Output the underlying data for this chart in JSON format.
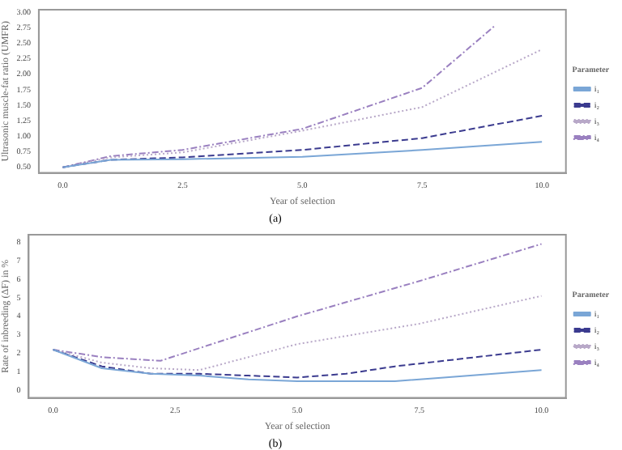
{
  "chart_data": [
    {
      "type": "line",
      "xlabel": "Year of selection",
      "ylabel": "Ultrasonic muscle-fat ratio (UMFR)",
      "legend_title": "Parameter",
      "legend": "right",
      "grid": false,
      "marker": "none",
      "annotations": [
        "(a)"
      ],
      "xlim": [
        -0.5,
        10.5
      ],
      "xticks": [
        {
          "value": 0,
          "label": "0.0"
        },
        {
          "value": 2.5,
          "label": "2.5"
        },
        {
          "value": 5,
          "label": "5.0"
        },
        {
          "value": 7.5,
          "label": "7.5"
        },
        {
          "value": 10,
          "label": "10.0"
        }
      ],
      "ylim": [
        0.41,
        3.04
      ],
      "yticks": [
        {
          "value": 0.5,
          "label": "0.50"
        },
        0.75,
        {
          "value": 1,
          "label": "1.00"
        },
        1.25,
        {
          "value": 1.5,
          "label": "1.50"
        },
        1.75,
        {
          "value": 2,
          "label": "2.00"
        },
        2.25,
        {
          "value": 2.5,
          "label": "2.50"
        },
        2.75,
        {
          "value": 3,
          "label": "3.00"
        }
      ],
      "series": [
        {
          "name": "i₁",
          "color": "#7aa6d6",
          "line_style": "solid",
          "x": [
            0,
            1,
            2.5,
            5,
            7.5,
            10
          ],
          "values": [
            0.5,
            0.62,
            0.63,
            0.67,
            0.78,
            0.91
          ]
        },
        {
          "name": "i₂",
          "color": "#3b3b8f",
          "line_style": "dashed",
          "x": [
            0,
            1,
            2.5,
            5,
            7.5,
            10
          ],
          "values": [
            0.5,
            0.62,
            0.66,
            0.78,
            0.97,
            1.33
          ]
        },
        {
          "name": "i₃",
          "color": "#b8a8c8",
          "line_style": "dotted",
          "x": [
            0,
            1,
            2.5,
            5,
            7.5,
            10
          ],
          "values": [
            0.5,
            0.66,
            0.74,
            1.09,
            1.47,
            2.4
          ]
        },
        {
          "name": "i₄",
          "color": "#9a80c0",
          "line_style": "dashdot",
          "x": [
            0,
            1,
            2.5,
            5,
            7.5,
            9
          ],
          "values": [
            0.5,
            0.68,
            0.78,
            1.12,
            1.78,
            2.77
          ]
        }
      ]
    },
    {
      "type": "line",
      "xlabel": "Year of selection",
      "ylabel": "Rate of inbreeding (ΔF) in %",
      "legend_title": "Parameter",
      "legend": "right",
      "grid": false,
      "marker": "none",
      "annotations": [
        "(b)"
      ],
      "xlim": [
        -0.5,
        10.5
      ],
      "xticks": [
        {
          "value": 0,
          "label": "0.0"
        },
        {
          "value": 2.5,
          "label": "2.5"
        },
        {
          "value": 5,
          "label": "5.0"
        },
        {
          "value": 7.5,
          "label": "7.5"
        },
        {
          "value": 10,
          "label": "10.0"
        }
      ],
      "ylim": [
        -0.4,
        8.4
      ],
      "yticks": [
        0,
        1,
        2,
        3,
        4,
        5,
        6,
        7,
        8
      ],
      "series": [
        {
          "name": "i₁",
          "color": "#7aa6d6",
          "line_style": "solid",
          "x": [
            0,
            1,
            2,
            3,
            4,
            5,
            6,
            7,
            8,
            10
          ],
          "values": [
            2.2,
            1.2,
            0.9,
            0.8,
            0.6,
            0.5,
            0.5,
            0.5,
            0.7,
            1.1
          ]
        },
        {
          "name": "i₂",
          "color": "#3b3b8f",
          "line_style": "dashed",
          "x": [
            0,
            1,
            2,
            3,
            4,
            5,
            6,
            7,
            8,
            10
          ],
          "values": [
            2.2,
            1.3,
            0.9,
            0.9,
            0.8,
            0.7,
            0.9,
            1.3,
            1.6,
            2.2
          ]
        },
        {
          "name": "i₃",
          "color": "#b8a8c8",
          "line_style": "dotted",
          "x": [
            0,
            1,
            2,
            3,
            5,
            7.5,
            10
          ],
          "values": [
            2.2,
            1.5,
            1.2,
            1.1,
            2.5,
            3.6,
            5.1
          ]
        },
        {
          "name": "i₄",
          "color": "#9a80c0",
          "line_style": "dashdot",
          "x": [
            0,
            1,
            2.2,
            5,
            7.5,
            10
          ],
          "values": [
            2.2,
            1.8,
            1.6,
            4.0,
            5.9,
            7.9
          ]
        }
      ]
    }
  ]
}
